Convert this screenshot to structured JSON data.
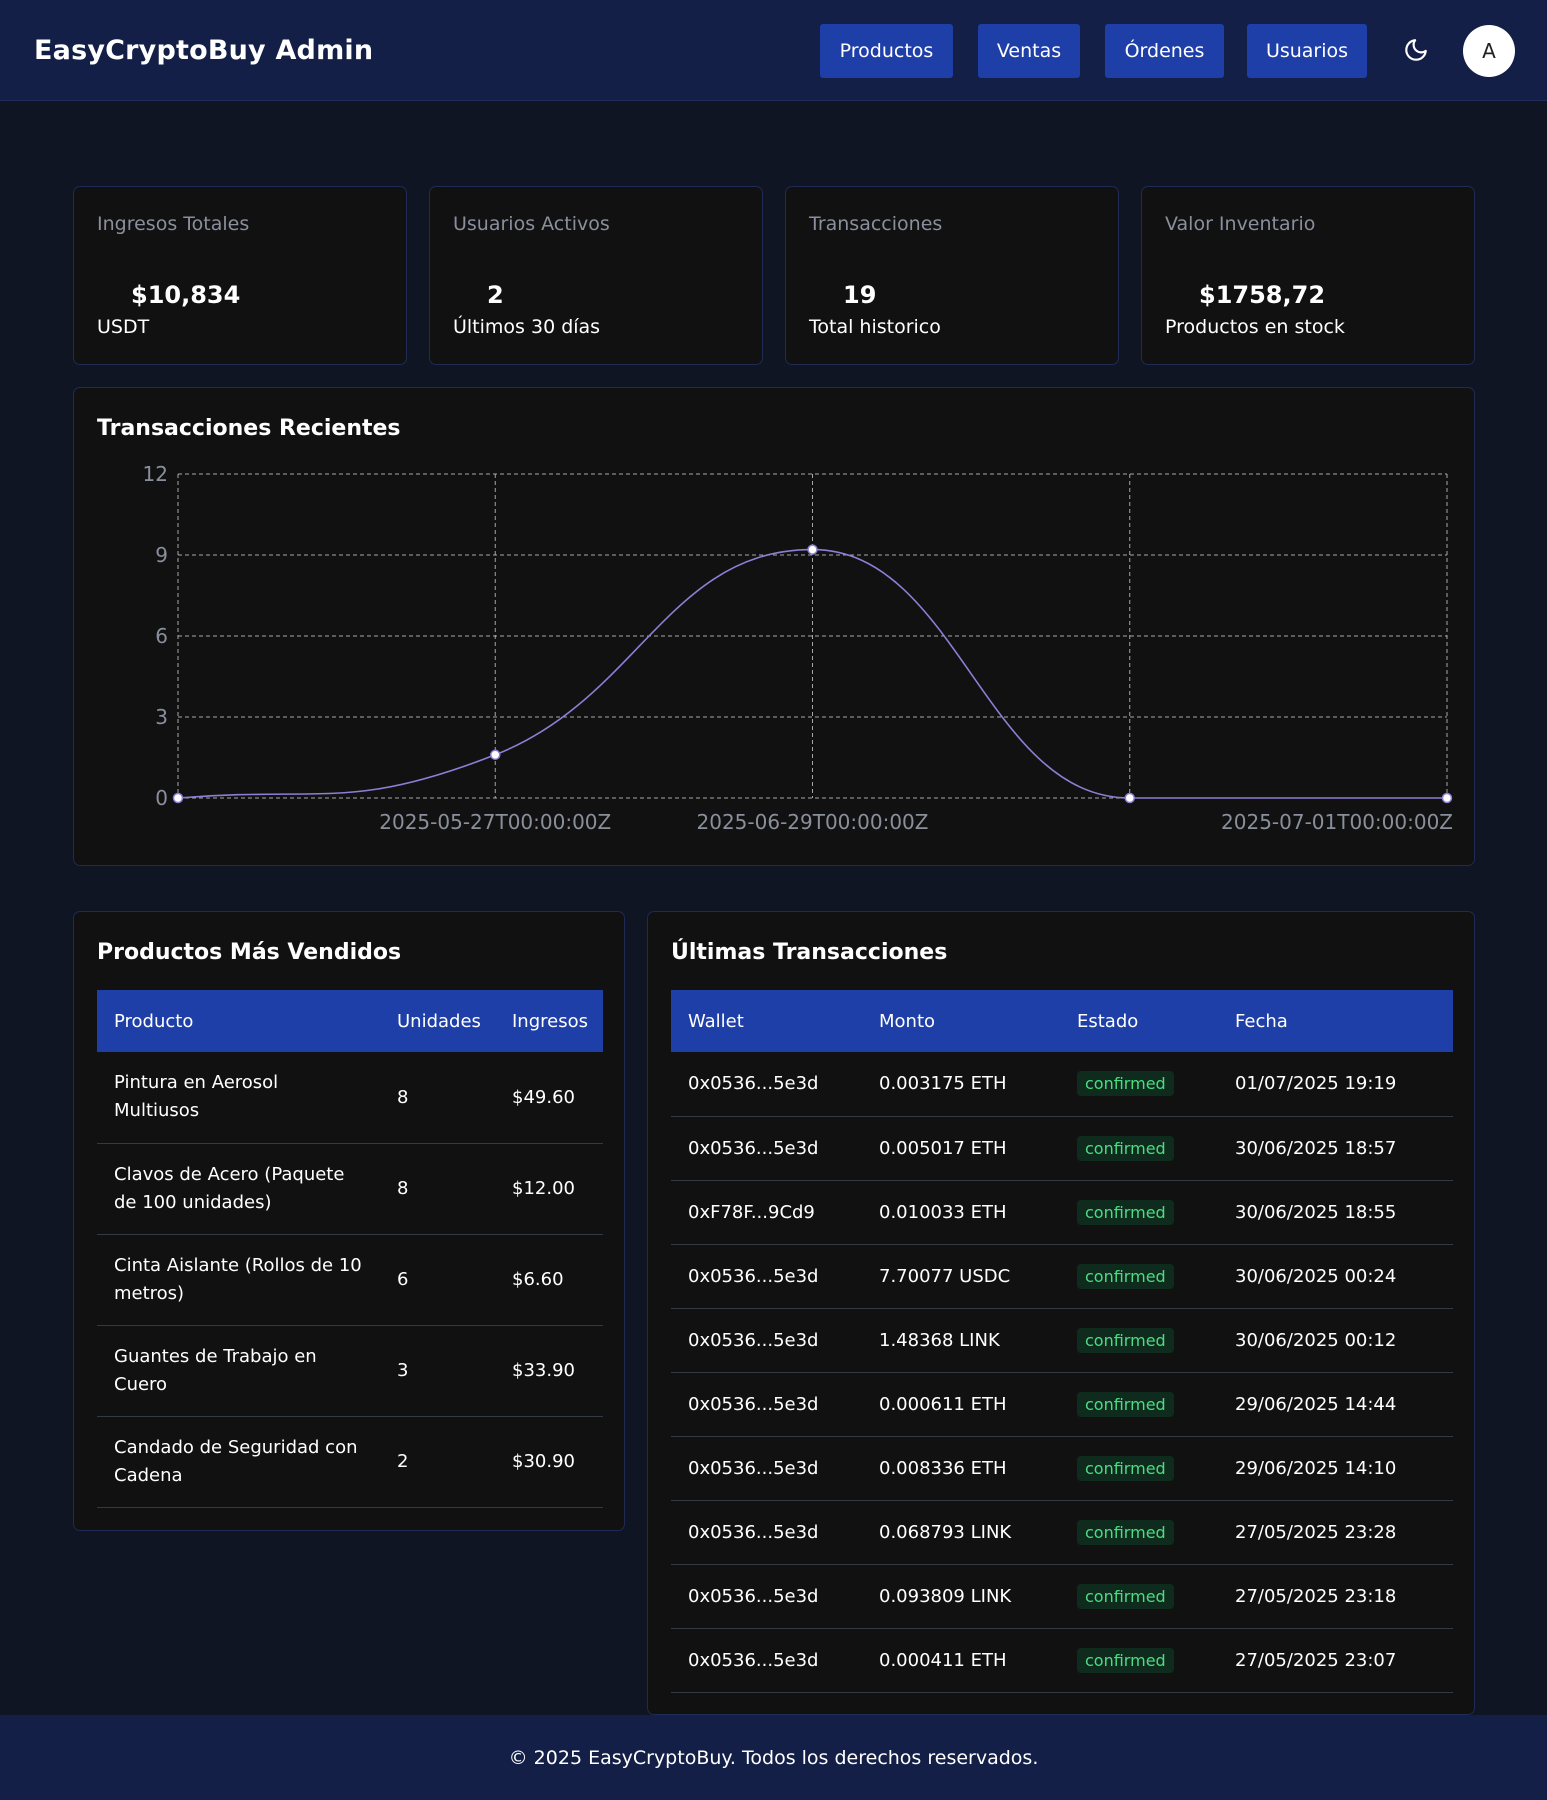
{
  "header": {
    "brand": "EasyCryptoBuy Admin",
    "nav": [
      "Productos",
      "Ventas",
      "Órdenes",
      "Usuarios"
    ],
    "avatar_letter": "A",
    "theme_icon": "moon-icon"
  },
  "stats": [
    {
      "label": "Ingresos Totales",
      "value": "$10,834",
      "sub": "USDT"
    },
    {
      "label": "Usuarios Activos",
      "value": "2",
      "sub": "Últimos 30 días"
    },
    {
      "label": "Transacciones",
      "value": "19",
      "sub": "Total historico"
    },
    {
      "label": "Valor Inventario",
      "value": "$1758,72",
      "sub": "Productos en stock"
    }
  ],
  "chart_section": {
    "title": "Transacciones Recientes"
  },
  "chart_data": {
    "type": "line",
    "x": [
      "2025-05-27T00:00:00Z",
      "2025-06-29T00:00:00Z",
      "2025-06-30T00:00:00Z",
      "2025-07-01T00:00:00Z"
    ],
    "series": [
      {
        "values": [
          1.6,
          9.2,
          0,
          0
        ]
      }
    ],
    "start_value": 0,
    "x_tick_labels": [
      "2025-05-27T00:00:00Z",
      "2025-06-29T00:00:00Z",
      "2025-07-01T00:00:00Z"
    ],
    "y_ticks": [
      0,
      3,
      6,
      9,
      12
    ],
    "ylim": [
      0,
      12
    ],
    "grid": true,
    "colors": {
      "line": "#8b7fd6",
      "grid": "#cccccc"
    }
  },
  "top_products": {
    "title": "Productos Más Vendidos",
    "headers": [
      "Producto",
      "Unidades",
      "Ingresos"
    ],
    "rows": [
      [
        "Pintura en Aerosol Multiusos",
        "8",
        "$49.60"
      ],
      [
        "Clavos de Acero (Paquete de 100 unidades)",
        "8",
        "$12.00"
      ],
      [
        "Cinta Aislante (Rollos de 10 metros)",
        "6",
        "$6.60"
      ],
      [
        "Guantes de Trabajo en Cuero",
        "3",
        "$33.90"
      ],
      [
        "Candado de Seguridad con Cadena",
        "2",
        "$30.90"
      ]
    ]
  },
  "transactions": {
    "title": "Últimas Transacciones",
    "headers": [
      "Wallet",
      "Monto",
      "Estado",
      "Fecha"
    ],
    "rows": [
      [
        "0x0536...5e3d",
        "0.003175 ETH",
        "confirmed",
        "01/07/2025 19:19"
      ],
      [
        "0x0536...5e3d",
        "0.005017 ETH",
        "confirmed",
        "30/06/2025 18:57"
      ],
      [
        "0xF78F...9Cd9",
        "0.010033 ETH",
        "confirmed",
        "30/06/2025 18:55"
      ],
      [
        "0x0536...5e3d",
        "7.70077 USDC",
        "confirmed",
        "30/06/2025 00:24"
      ],
      [
        "0x0536...5e3d",
        "1.48368 LINK",
        "confirmed",
        "30/06/2025 00:12"
      ],
      [
        "0x0536...5e3d",
        "0.000611 ETH",
        "confirmed",
        "29/06/2025 14:44"
      ],
      [
        "0x0536...5e3d",
        "0.008336 ETH",
        "confirmed",
        "29/06/2025 14:10"
      ],
      [
        "0x0536...5e3d",
        "0.068793 LINK",
        "confirmed",
        "27/05/2025 23:28"
      ],
      [
        "0x0536...5e3d",
        "0.093809 LINK",
        "confirmed",
        "27/05/2025 23:18"
      ],
      [
        "0x0536...5e3d",
        "0.000411 ETH",
        "confirmed",
        "27/05/2025 23:07"
      ]
    ]
  },
  "footer": {
    "text": "© 2025 EasyCryptoBuy. Todos los derechos reservados."
  }
}
